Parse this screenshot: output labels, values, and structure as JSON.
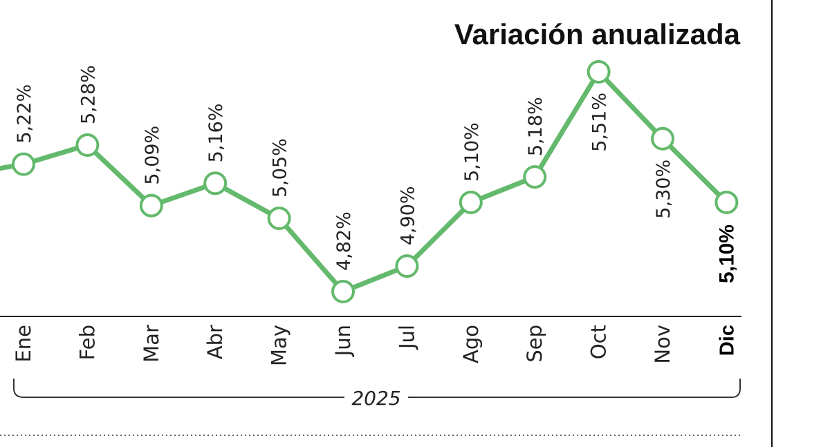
{
  "chart_data": {
    "type": "line",
    "title": "Variación anualizada",
    "categories": [
      "Ene",
      "Feb",
      "Mar",
      "Abr",
      "May",
      "Jun",
      "Jul",
      "Ago",
      "Sep",
      "Oct",
      "Nov",
      "Dic"
    ],
    "values": [
      5.22,
      5.28,
      5.09,
      5.16,
      5.05,
      4.82,
      4.9,
      5.1,
      5.18,
      5.51,
      5.3,
      5.1
    ],
    "value_labels": [
      "5,22%",
      "5,28%",
      "5,09%",
      "5,16%",
      "5,05%",
      "4,82%",
      "4,90%",
      "5,10%",
      "5,18%",
      "5,51%",
      "5,30%",
      "5,10%"
    ],
    "year_label": "2025",
    "line_color": "#63b96c",
    "grid": false,
    "xlabel": "",
    "ylabel": ""
  }
}
